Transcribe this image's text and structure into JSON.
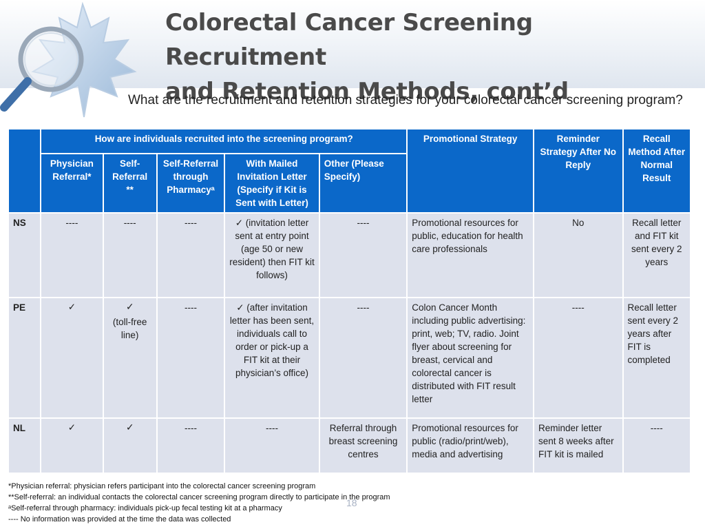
{
  "slide": {
    "title_line1": "Colorectal Cancer Screening Recruitment",
    "title_line2": "and Retention Methods, cont’d",
    "question": "What are the recruitment and retention strategies for your colorectal cancer screening program?",
    "page_number": "18"
  },
  "table": {
    "group_header": "How are individuals recruited into the screening program?",
    "headers": {
      "promotional": "Promotional Strategy",
      "reminder": "Reminder Strategy After No Reply",
      "recall": "Recall Method After Normal Result",
      "physician": "Physician Referral*",
      "self_referral": "Self-Referral **",
      "pharmacy": "Self-Referral through Pharmacyᵃ",
      "mailed": "With Mailed Invitation Letter (Specify if Kit is Sent with Letter)",
      "other": "Other (Please Specify)"
    },
    "rows": [
      {
        "province": "NS",
        "physician": "----",
        "self_referral": "----",
        "self_referral_note": "",
        "pharmacy": "----",
        "mailed": "✓ (invitation letter sent at entry point (age 50 or new resident) then FIT kit follows)",
        "other": "----",
        "promotional": "Promotional resources for public, education for health care professionals",
        "reminder": "No",
        "recall": "Recall letter and FIT kit sent every 2 years"
      },
      {
        "province": "PE",
        "physician": "✓",
        "self_referral": "✓",
        "self_referral_note": "(toll-free line)",
        "pharmacy": "----",
        "mailed": "✓ (after invitation letter has been sent, individuals call to order or pick-up a FIT kit at their physician’s office)",
        "other": "----",
        "promotional": "Colon Cancer Month including public advertising: print, web; TV, radio. Joint flyer about screening for breast, cervical and colorectal cancer is distributed with FIT result letter",
        "reminder": "----",
        "recall": "Recall letter sent every 2 years after  FIT is completed"
      },
      {
        "province": "NL",
        "physician": "✓",
        "self_referral": "✓",
        "self_referral_note": "",
        "pharmacy": "----",
        "mailed": "----",
        "other": "Referral through breast screening centres",
        "promotional": "Promotional resources for public (radio/print/web), media and advertising",
        "reminder": "Reminder letter sent 8 weeks after FIT kit is mailed",
        "recall": "----"
      }
    ]
  },
  "footnotes": [
    "*Physician referral: physician refers participant into the colorectal cancer screening program",
    "**Self-referral: an individual contacts the colorectal cancer screening program directly to participate in the program",
    "ᵃSelf-referral through pharmacy: individuals pick-up fecal testing kit at a pharmacy",
    "---- No information was provided at the time the data was collected"
  ],
  "colors": {
    "header_blue": "#0b68c9",
    "cell_fill": "#dde1ec",
    "title_gray": "#4a4a4a"
  },
  "logo": {
    "icon": "maple-leaf-magnifier-icon"
  }
}
